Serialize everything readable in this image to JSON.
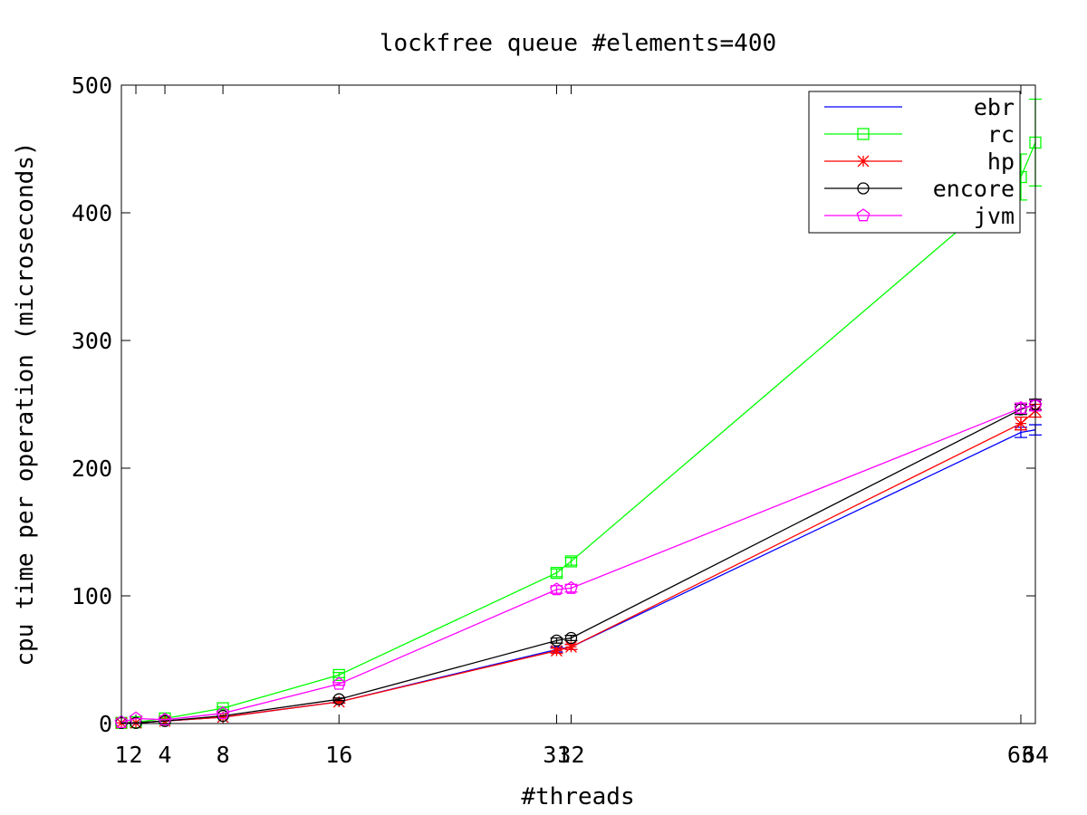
{
  "chart_data": {
    "type": "line",
    "title": "lockfree queue #elements=400",
    "xlabel": "#threads",
    "ylabel": "cpu time per operation (microseconds)",
    "xlim": [
      1,
      64
    ],
    "ylim": [
      0,
      500
    ],
    "x_ticks": [
      1,
      2,
      4,
      8,
      16,
      31,
      32,
      63,
      64
    ],
    "x_tick_labels": [
      "1",
      "2",
      "4",
      "8",
      "16",
      "31",
      "32",
      "63",
      "64"
    ],
    "y_ticks": [
      0,
      100,
      200,
      300,
      400,
      500
    ],
    "y_tick_labels": [
      "0",
      "100",
      "200",
      "300",
      "400",
      "500"
    ],
    "grid": false,
    "legend_position": "top-right",
    "series": [
      {
        "name": "ebr",
        "color": "#0000ff",
        "marker": "none",
        "x": [
          1,
          2,
          4,
          8,
          16,
          31,
          32,
          63,
          64
        ],
        "y": [
          0.5,
          0.5,
          2,
          5,
          17,
          58,
          60,
          228,
          230
        ],
        "err": [
          0,
          0,
          0,
          0,
          1,
          2,
          2,
          4,
          4
        ]
      },
      {
        "name": "rc",
        "color": "#00ff00",
        "marker": "square",
        "x": [
          1,
          2,
          4,
          8,
          16,
          31,
          32,
          63,
          64
        ],
        "y": [
          0.5,
          1,
          4,
          12,
          38,
          118,
          127,
          428,
          455
        ],
        "err": [
          0,
          0,
          1,
          1,
          2,
          3,
          3,
          18,
          34
        ]
      },
      {
        "name": "hp",
        "color": "#ff0000",
        "marker": "star",
        "x": [
          1,
          2,
          4,
          8,
          16,
          31,
          32,
          63,
          64
        ],
        "y": [
          0.5,
          0.5,
          2,
          5,
          17,
          57,
          60,
          235,
          245
        ],
        "err": [
          0,
          0,
          0,
          0,
          1,
          2,
          2,
          5,
          5
        ]
      },
      {
        "name": "encore",
        "color": "#000000",
        "marker": "circle",
        "x": [
          1,
          2,
          4,
          8,
          16,
          31,
          32,
          63,
          64
        ],
        "y": [
          0.5,
          0.5,
          2,
          6,
          19,
          65,
          67,
          246,
          250
        ],
        "err": [
          0,
          0,
          0,
          0,
          1,
          2,
          2,
          4,
          4
        ]
      },
      {
        "name": "jvm",
        "color": "#ff00ff",
        "marker": "pentagon",
        "x": [
          1,
          2,
          4,
          8,
          16,
          31,
          32,
          63,
          64
        ],
        "y": [
          1,
          4,
          3,
          8,
          31,
          105,
          106,
          247,
          249
        ],
        "err": [
          0,
          0,
          0,
          0,
          1,
          3,
          3,
          4,
          4
        ]
      }
    ]
  }
}
